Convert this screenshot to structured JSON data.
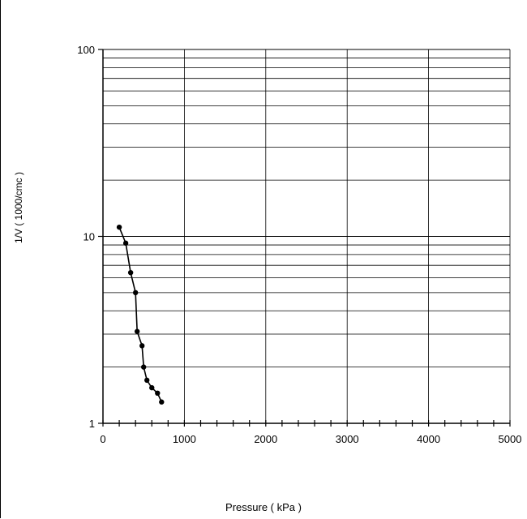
{
  "chart_data": {
    "type": "line",
    "xlabel": "Pressure ( kPa )",
    "ylabel": "1/V ( 1000/cmc )",
    "x_ticks": [
      "0",
      "1000",
      "2000",
      "3000",
      "4000",
      "5000"
    ],
    "y_ticks": [
      "1",
      "10",
      "100"
    ],
    "xlim": [
      0,
      5000
    ],
    "ylim": [
      1,
      100
    ],
    "y_scale": "log",
    "grid": true,
    "series": [
      {
        "color": "#000000",
        "marker": "circle",
        "x": [
          200,
          280,
          340,
          400,
          420,
          480,
          500,
          540,
          600,
          670,
          720
        ],
        "y": [
          11.2,
          9.2,
          6.4,
          5.0,
          3.1,
          2.6,
          2.0,
          1.7,
          1.55,
          1.45,
          1.3
        ]
      }
    ]
  }
}
